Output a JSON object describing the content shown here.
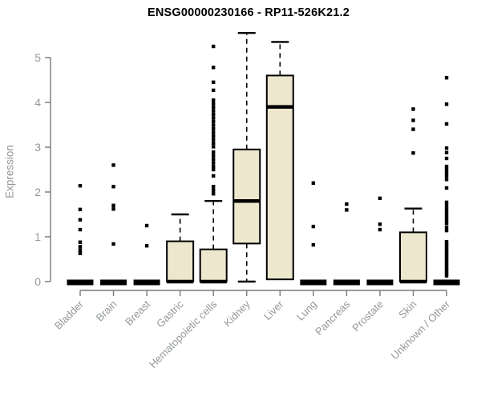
{
  "chart_data": {
    "type": "boxplot",
    "title": "ENSG00000230166 - RP11-526K21.2",
    "ylabel": "Expression",
    "xlabel": "",
    "ylim": [
      0,
      5
    ],
    "yticks": [
      0,
      1,
      2,
      3,
      4,
      5
    ],
    "grid": false,
    "legend": "none",
    "categories": [
      "Bladder",
      "Brain",
      "Breast",
      "Gastric",
      "Hematopoietic cells",
      "Kidney",
      "Liver",
      "Lung",
      "Pancreas",
      "Prostate",
      "Skin",
      "Unknown / Other"
    ],
    "boxes": [
      {
        "category": "Bladder",
        "q1": 0,
        "median": 0,
        "q3": 0,
        "whisker_low": 0,
        "whisker_high": 0,
        "outliers": [
          2.14,
          1.61,
          1.38,
          1.16,
          0.88,
          0.78,
          0.7,
          0.63
        ]
      },
      {
        "category": "Brain",
        "q1": 0,
        "median": 0,
        "q3": 0,
        "whisker_low": 0,
        "whisker_high": 0,
        "outliers": [
          2.6,
          2.12,
          1.7,
          1.62,
          0.84
        ]
      },
      {
        "category": "Breast",
        "q1": 0,
        "median": 0,
        "q3": 0,
        "whisker_low": 0,
        "whisker_high": 0,
        "outliers": [
          1.25,
          0.8
        ]
      },
      {
        "category": "Gastric",
        "q1": 0,
        "median": 0,
        "q3": 0.9,
        "whisker_low": 0,
        "whisker_high": 1.5,
        "outliers": []
      },
      {
        "category": "Hematopoietic cells",
        "q1": 0,
        "median": 0,
        "q3": 0.72,
        "whisker_low": 0,
        "whisker_high": 1.8,
        "outliers": [
          5.25,
          4.78,
          4.45,
          4.27,
          4.05,
          3.97,
          3.89,
          3.81,
          3.73,
          3.65,
          3.57,
          3.49,
          3.41,
          3.33,
          3.25,
          3.17,
          3.09,
          3.01,
          2.89,
          2.81,
          2.73,
          2.65,
          2.57,
          2.5,
          2.36,
          2.12,
          2.04,
          1.96
        ]
      },
      {
        "category": "Kidney",
        "q1": 0.85,
        "median": 1.8,
        "q3": 2.95,
        "whisker_low": 0,
        "whisker_high": 5.55,
        "outliers": []
      },
      {
        "category": "Liver",
        "q1": 0.05,
        "median": 3.9,
        "q3": 4.6,
        "whisker_low": 0.05,
        "whisker_high": 5.35,
        "outliers": []
      },
      {
        "category": "Lung",
        "q1": 0,
        "median": 0,
        "q3": 0,
        "whisker_low": 0,
        "whisker_high": 0,
        "outliers": [
          2.2,
          1.23,
          0.82
        ]
      },
      {
        "category": "Pancreas",
        "q1": 0,
        "median": 0,
        "q3": 0,
        "whisker_low": 0,
        "whisker_high": 0,
        "outliers": [
          1.73,
          1.6
        ]
      },
      {
        "category": "Prostate",
        "q1": 0,
        "median": 0,
        "q3": 0,
        "whisker_low": 0,
        "whisker_high": 0,
        "outliers": [
          1.86,
          1.28,
          1.16
        ]
      },
      {
        "category": "Skin",
        "q1": 0,
        "median": 0,
        "q3": 1.1,
        "whisker_low": 0,
        "whisker_high": 1.63,
        "outliers": [
          3.85,
          3.6,
          3.4,
          2.87
        ]
      },
      {
        "category": "Unknown / Other",
        "q1": 0,
        "median": 0,
        "q3": 0,
        "whisker_low": 0,
        "whisker_high": 0,
        "outliers": [
          4.55,
          3.96,
          3.52,
          2.98,
          2.88,
          2.75,
          2.57,
          2.5,
          2.43,
          2.36,
          2.28,
          2.09,
          1.77,
          1.7,
          1.63,
          1.56,
          1.49,
          1.43,
          1.36,
          1.3,
          1.21,
          1.14,
          0.89,
          0.85,
          0.8,
          0.76,
          0.71,
          0.67,
          0.62,
          0.58,
          0.54,
          0.49,
          0.45,
          0.4,
          0.36,
          0.31,
          0.27,
          0.22,
          0.17,
          0.13
        ]
      }
    ],
    "style": {
      "box_fill": "#ece7cd",
      "box_stroke": "#000000",
      "median_color": "#000000",
      "axis_color": "#787878",
      "tick_label_color": "#939897",
      "title_color": "#000000",
      "background": "#ffffff"
    }
  }
}
